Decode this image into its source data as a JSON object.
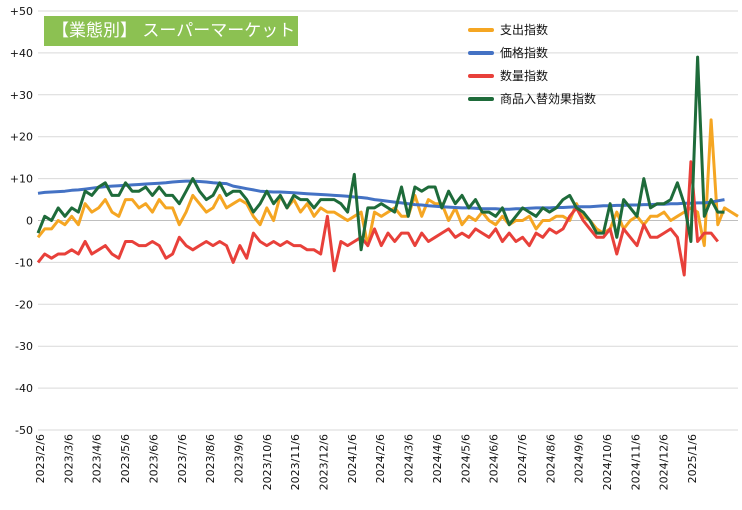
{
  "chart_data": {
    "type": "line",
    "title": "【業態別】 スーパーマーケット",
    "ylim": [
      -50,
      50
    ],
    "ytick_labels": [
      "+50",
      "+40",
      "+30",
      "+20",
      "+10",
      "0",
      "-10",
      "-20",
      "-30",
      "-40",
      "-50"
    ],
    "yticks": [
      50,
      40,
      30,
      20,
      10,
      0,
      -10,
      -20,
      -30,
      -40,
      -50
    ],
    "grid": true,
    "legend_position": "top-right",
    "x_tick_labels": [
      "2023/2/6",
      "2023/3/6",
      "2023/4/6",
      "2023/5/6",
      "2023/6/6",
      "2023/7/6",
      "2023/8/6",
      "2023/9/6",
      "2023/10/6",
      "2023/11/6",
      "2023/12/6",
      "2024/1/6",
      "2024/2/6",
      "2024/3/6",
      "2024/4/6",
      "2024/5/6",
      "2024/6/6",
      "2024/7/6",
      "2024/8/6",
      "2024/9/6",
      "2024/10/6",
      "2024/11/6",
      "2024/12/6",
      "2025/1/6"
    ],
    "series": [
      {
        "name": "支出指数",
        "color": "#f5a623",
        "values": [
          -4,
          -2,
          -2,
          0,
          -1,
          1,
          -1,
          4,
          2,
          3,
          5,
          2,
          1,
          5,
          5,
          3,
          4,
          2,
          5,
          3,
          3,
          -1,
          2,
          6,
          4,
          2,
          3,
          6,
          3,
          4,
          5,
          4,
          1,
          -1,
          3,
          0,
          6,
          3,
          5,
          2,
          4,
          1,
          3,
          2,
          2,
          1,
          0,
          1,
          2,
          -6,
          2,
          1,
          2,
          3,
          1,
          1,
          6,
          1,
          5,
          4,
          4,
          0,
          3,
          -1,
          1,
          0,
          2,
          0,
          -1,
          1,
          -1,
          0,
          0,
          1,
          -2,
          0,
          0,
          1,
          1,
          0,
          4,
          1,
          0,
          -2,
          -3,
          -2,
          2,
          -2,
          0,
          1,
          -1,
          1,
          1,
          2,
          0,
          1,
          2,
          3,
          2,
          -6,
          24,
          -1,
          3,
          2,
          1
        ]
      },
      {
        "name": "価格指数",
        "color": "#4472c4",
        "values": [
          6.5,
          6.7,
          6.8,
          6.9,
          7.0,
          7.2,
          7.3,
          7.5,
          7.7,
          7.9,
          8.1,
          8.2,
          8.3,
          8.4,
          8.5,
          8.6,
          8.7,
          8.8,
          8.9,
          9.0,
          9.2,
          9.3,
          9.4,
          9.4,
          9.3,
          9.2,
          9.0,
          8.9,
          8.8,
          8.2,
          7.9,
          7.6,
          7.3,
          7.0,
          6.9,
          6.8,
          6.8,
          6.7,
          6.6,
          6.5,
          6.4,
          6.3,
          6.2,
          6.1,
          6.0,
          5.9,
          5.8,
          5.6,
          5.5,
          5.3,
          5.0,
          4.8,
          4.6,
          4.4,
          4.2,
          4.0,
          3.8,
          3.7,
          3.5,
          3.4,
          3.3,
          3.2,
          3.1,
          3.0,
          3.0,
          2.9,
          2.8,
          2.8,
          2.8,
          2.7,
          2.7,
          2.8,
          2.8,
          2.9,
          3.0,
          3.0,
          3.0,
          3.1,
          3.1,
          3.2,
          3.3,
          3.3,
          3.3,
          3.4,
          3.5,
          3.5,
          3.6,
          3.6,
          3.7,
          3.7,
          3.8,
          3.8,
          3.9,
          3.9,
          4.0,
          4.0,
          4.1,
          4.1,
          4.2,
          4.2,
          4.4,
          4.7,
          5.0
        ]
      },
      {
        "name": "数量指数",
        "color": "#e8403a",
        "values": [
          -10,
          -8,
          -9,
          -8,
          -8,
          -7,
          -8,
          -5,
          -8,
          -7,
          -6,
          -8,
          -9,
          -5,
          -5,
          -6,
          -6,
          -5,
          -6,
          -9,
          -8,
          -4,
          -6,
          -7,
          -6,
          -5,
          -6,
          -5,
          -6,
          -10,
          -6,
          -9,
          -3,
          -5,
          -6,
          -5,
          -6,
          -5,
          -6,
          -6,
          -7,
          -7,
          -8,
          1,
          -12,
          -5,
          -6,
          -5,
          -4,
          -6,
          -2,
          -6,
          -3,
          -5,
          -3,
          -3,
          -6,
          -3,
          -5,
          -4,
          -3,
          -2,
          -4,
          -3,
          -4,
          -2,
          -3,
          -4,
          -2,
          -5,
          -3,
          -5,
          -4,
          -6,
          -3,
          -4,
          -2,
          -3,
          -2,
          1,
          3,
          0,
          -2,
          -4,
          -4,
          -2,
          -8,
          -2,
          -4,
          -6,
          -1,
          -4,
          -4,
          -3,
          -2,
          -4,
          -13,
          14,
          -5,
          -3,
          -3,
          -5
        ]
      },
      {
        "name": "商品入替効果指数",
        "color": "#1e6b3a",
        "values": [
          -3,
          1,
          0,
          3,
          1,
          3,
          2,
          7,
          6,
          8,
          9,
          6,
          6,
          9,
          7,
          7,
          8,
          6,
          8,
          6,
          6,
          4,
          7,
          10,
          7,
          5,
          6,
          9,
          6,
          7,
          7,
          5,
          2,
          4,
          7,
          4,
          6,
          3,
          6,
          5,
          5,
          3,
          5,
          5,
          5,
          4,
          2,
          11,
          -7,
          3,
          3,
          4,
          3,
          2,
          8,
          1,
          8,
          7,
          8,
          8,
          3,
          7,
          4,
          6,
          3,
          5,
          2,
          2,
          1,
          3,
          -1,
          1,
          3,
          2,
          1,
          3,
          2,
          3,
          5,
          6,
          3,
          2,
          0,
          -3,
          -3,
          4,
          -4,
          5,
          3,
          1,
          10,
          3,
          4,
          4,
          5,
          9,
          4,
          -5,
          39,
          1,
          5,
          2,
          2
        ]
      }
    ]
  }
}
